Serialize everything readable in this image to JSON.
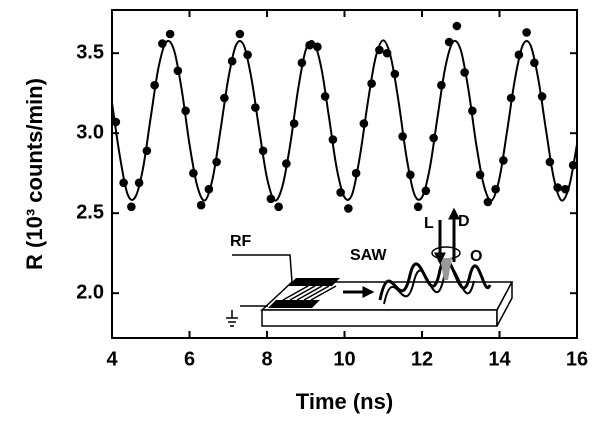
{
  "chart_data": {
    "type": "scatter",
    "xlabel": "Time (ns)",
    "ylabel": "R (10³ counts/min)",
    "xlim": [
      4,
      16
    ],
    "ylim": [
      1.72,
      3.77
    ],
    "xticks": [
      4,
      6,
      8,
      10,
      12,
      14,
      16
    ],
    "yticks": [
      {
        "value": 2,
        "label": "2.0"
      },
      2.5,
      {
        "value": 3,
        "label": "3.0"
      },
      3.5
    ],
    "annotations": [
      "RF",
      "SAW",
      "L",
      "D",
      "O"
    ],
    "series": [
      {
        "kind": "points",
        "color": "#000000",
        "x": [
          4.1,
          4.3,
          4.5,
          4.7,
          4.9,
          5.1,
          5.3,
          5.5,
          5.7,
          5.9,
          6.1,
          6.3,
          6.5,
          6.7,
          6.9,
          7.1,
          7.3,
          7.5,
          7.7,
          7.9,
          8.1,
          8.3,
          8.5,
          8.7,
          8.9,
          9.1,
          9.3,
          9.5,
          9.7,
          9.9,
          10.1,
          10.3,
          10.5,
          10.7,
          10.9,
          11.1,
          11.3,
          11.5,
          11.7,
          11.9,
          12.1,
          12.3,
          12.5,
          12.7,
          12.9,
          13.1,
          13.3,
          13.5,
          13.7,
          13.9,
          14.1,
          14.3,
          14.5,
          14.7,
          14.9,
          15.1,
          15.3,
          15.5,
          15.7,
          15.9
        ],
        "values": [
          3.07,
          2.69,
          2.54,
          2.69,
          2.89,
          3.3,
          3.56,
          3.62,
          3.39,
          3.14,
          2.75,
          2.55,
          2.65,
          2.82,
          3.22,
          3.45,
          3.62,
          3.49,
          3.16,
          2.89,
          2.59,
          2.54,
          2.81,
          3.06,
          3.44,
          3.55,
          3.54,
          3.23,
          2.96,
          2.63,
          2.53,
          2.75,
          3.06,
          3.31,
          3.52,
          3.5,
          3.37,
          2.98,
          2.74,
          2.54,
          2.64,
          2.97,
          3.3,
          3.57,
          3.67,
          3.38,
          3.14,
          2.74,
          2.57,
          2.65,
          2.83,
          3.22,
          3.49,
          3.63,
          3.44,
          3.23,
          2.82,
          2.66,
          2.65,
          2.8
        ]
      },
      {
        "kind": "line",
        "color": "#000000",
        "x": [
          4.0,
          4.2,
          4.4,
          4.6,
          4.8,
          5.0,
          5.2,
          5.4,
          5.6,
          5.8,
          6.0,
          6.2,
          6.4,
          6.6,
          6.8,
          7.0,
          7.2,
          7.4,
          7.6,
          7.8,
          8.0,
          8.2,
          8.4,
          8.6,
          8.8,
          9.0,
          9.2,
          9.4,
          9.6,
          9.8,
          10.0,
          10.2,
          10.4,
          10.6,
          10.8,
          11.0,
          11.2,
          11.4,
          11.6,
          11.8,
          12.0,
          12.2,
          12.4,
          12.6,
          12.8,
          13.0,
          13.2,
          13.4,
          13.6,
          13.8,
          14.0,
          14.2,
          14.4,
          14.6,
          14.8,
          15.0,
          15.2,
          15.4,
          15.6,
          15.8,
          16.0
        ],
        "values": [
          3.19,
          2.86,
          2.62,
          2.6,
          2.78,
          3.1,
          3.41,
          3.57,
          3.52,
          3.27,
          2.93,
          2.67,
          2.58,
          2.72,
          3.02,
          3.34,
          3.55,
          3.55,
          3.34,
          3.02,
          2.72,
          2.58,
          2.67,
          2.93,
          3.27,
          3.52,
          3.57,
          3.41,
          3.1,
          2.78,
          2.6,
          2.62,
          2.86,
          3.19,
          3.47,
          3.58,
          3.47,
          3.19,
          2.85,
          2.62,
          2.6,
          2.78,
          3.1,
          3.41,
          3.57,
          3.52,
          3.27,
          2.93,
          2.67,
          2.58,
          2.72,
          3.02,
          3.34,
          3.55,
          3.55,
          3.34,
          3.02,
          2.72,
          2.58,
          2.67,
          2.93
        ]
      }
    ]
  }
}
